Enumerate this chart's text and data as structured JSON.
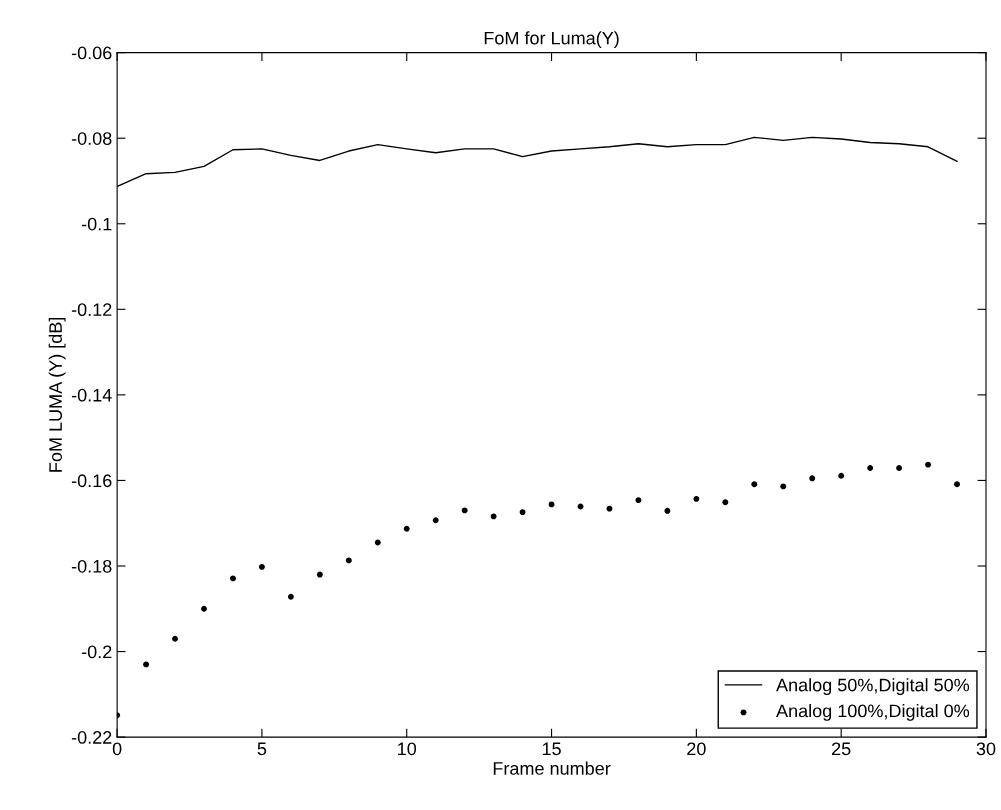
{
  "chart_data": {
    "type": "line",
    "title": "FoM for Luma(Y)",
    "xlabel": "Frame number",
    "ylabel": "FoM LUMA (Y) [dB]",
    "x": [
      0,
      1,
      2,
      3,
      4,
      5,
      6,
      7,
      8,
      9,
      10,
      11,
      12,
      13,
      14,
      15,
      16,
      17,
      18,
      19,
      20,
      21,
      22,
      23,
      24,
      25,
      26,
      27,
      28,
      29
    ],
    "series": [
      {
        "name": "Analog 50%,Digital 50%",
        "color": "#000000",
        "values": [
          -0.0913,
          -0.0883,
          -0.088,
          -0.0866,
          -0.0827,
          -0.0825,
          -0.084,
          -0.0852,
          -0.083,
          -0.0815,
          -0.0825,
          -0.0834,
          -0.0825,
          -0.0825,
          -0.0843,
          -0.083,
          -0.0825,
          -0.082,
          -0.0813,
          -0.082,
          -0.0815,
          -0.0815,
          -0.0798,
          -0.0805,
          -0.0798,
          -0.0802,
          -0.081,
          -0.0813,
          -0.082,
          -0.0854
        ]
      },
      {
        "name": "Analog 100%,Digital 0%",
        "type": "scatter",
        "color": "#000000",
        "values": [
          -0.2149,
          -0.203,
          -0.197,
          -0.19,
          -0.1829,
          -0.1802,
          -0.1872,
          -0.182,
          -0.1787,
          -0.1745,
          -0.1713,
          -0.1693,
          -0.167,
          -0.1684,
          -0.1674,
          -0.1656,
          -0.1661,
          -0.1666,
          -0.1646,
          -0.1671,
          -0.1643,
          -0.1651,
          -0.1609,
          -0.1614,
          -0.1595,
          -0.1589,
          -0.1571,
          -0.1571,
          -0.1563,
          -0.1609
        ]
      }
    ],
    "xlim": [
      0,
      30
    ],
    "xticks": [
      0,
      5,
      10,
      15,
      20,
      25,
      30
    ],
    "ylim": [
      -0.22,
      -0.06
    ],
    "yticks": [
      -0.22,
      -0.2,
      -0.18,
      -0.16,
      -0.14,
      -0.12,
      -0.1,
      -0.08,
      -0.06
    ],
    "legend": "bottom right",
    "grid": false
  }
}
